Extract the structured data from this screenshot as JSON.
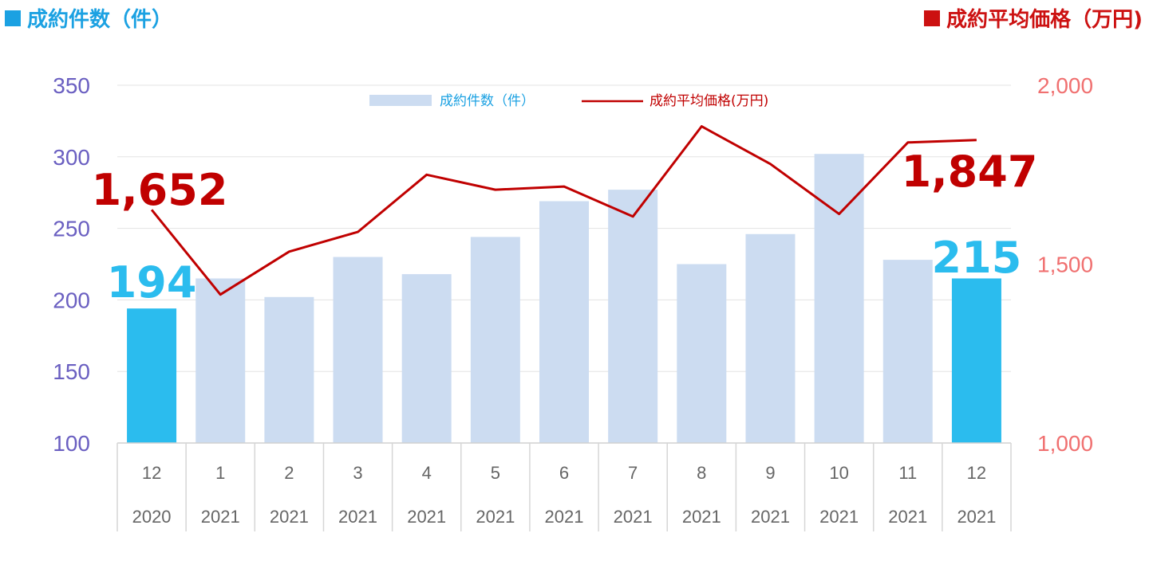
{
  "header": {
    "left_label": "成約件数（件）",
    "right_label": "成約平均価格（万円)"
  },
  "colors": {
    "bar": "#ccdcf1",
    "bar_highlight": "#2bbcee",
    "line": "#c00000",
    "left_axis": "#6a5fc1",
    "right_axis": "#f07070",
    "left_header": "#1ba1e2",
    "right_header": "#cc1111"
  },
  "chart_data": {
    "type": "bar",
    "categories": [
      {
        "month": "12",
        "year": "2020"
      },
      {
        "month": "1",
        "year": "2021"
      },
      {
        "month": "2",
        "year": "2021"
      },
      {
        "month": "3",
        "year": "2021"
      },
      {
        "month": "4",
        "year": "2021"
      },
      {
        "month": "5",
        "year": "2021"
      },
      {
        "month": "6",
        "year": "2021"
      },
      {
        "month": "7",
        "year": "2021"
      },
      {
        "month": "8",
        "year": "2021"
      },
      {
        "month": "9",
        "year": "2021"
      },
      {
        "month": "10",
        "year": "2021"
      },
      {
        "month": "11",
        "year": "2021"
      },
      {
        "month": "12",
        "year": "2021"
      }
    ],
    "series": [
      {
        "name": "成約件数（件）",
        "axis": "left",
        "kind": "bar",
        "values": [
          194,
          215,
          202,
          230,
          218,
          244,
          269,
          277,
          225,
          246,
          302,
          228,
          215
        ],
        "highlight": [
          0,
          12
        ]
      },
      {
        "name": "成約平均価格(万円)",
        "axis": "right",
        "kind": "line",
        "values": [
          1652,
          1415,
          1535,
          1590,
          1750,
          1708,
          1717,
          1633,
          1885,
          1780,
          1640,
          1840,
          1847
        ]
      }
    ],
    "left_axis": {
      "ylim": [
        100,
        350
      ],
      "ticks": [
        "100",
        "150",
        "200",
        "250",
        "300",
        "350"
      ]
    },
    "right_axis": {
      "ylim": [
        1000,
        2000
      ],
      "ticks": [
        "1,000",
        "1,500",
        "2,000"
      ]
    },
    "callouts": {
      "bar_first": "194",
      "bar_last": "215",
      "line_first": "1,652",
      "line_last": "1,847"
    },
    "legend_placement": "top-center",
    "grid": true
  }
}
